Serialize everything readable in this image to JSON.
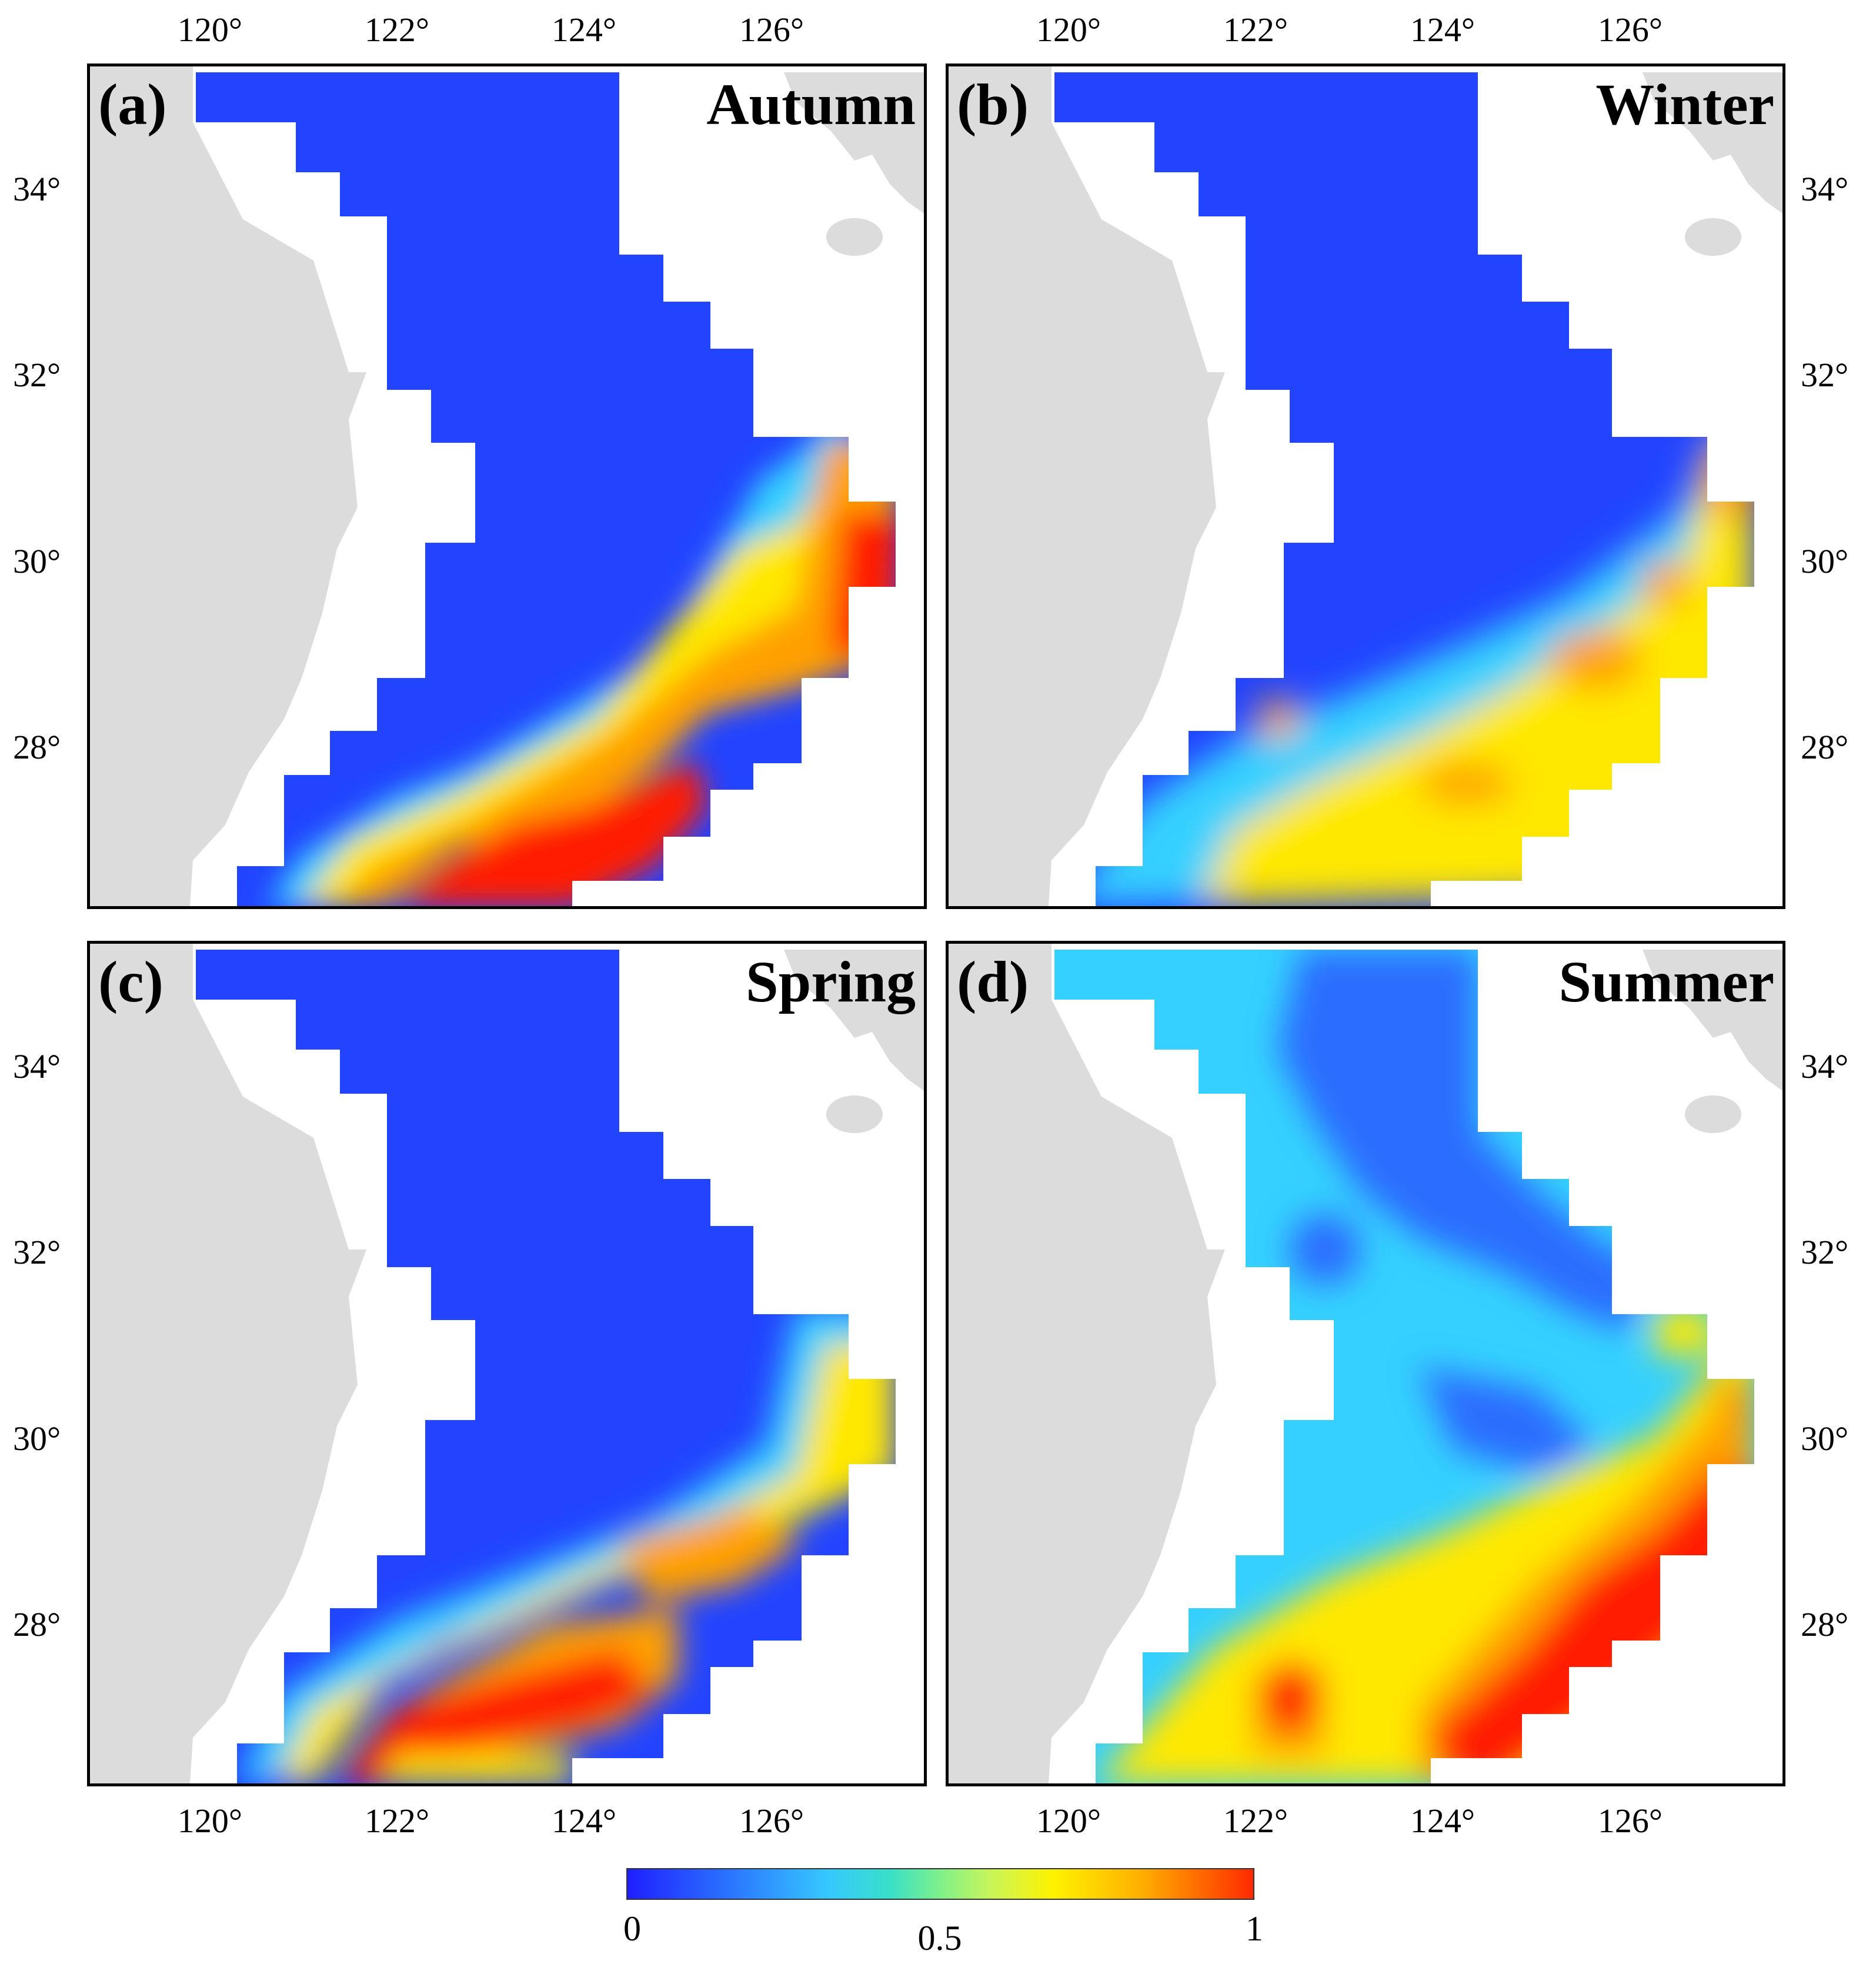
{
  "figure": {
    "panels": [
      {
        "label": "(a)",
        "season": "Autumn"
      },
      {
        "label": "(b)",
        "season": "Winter"
      },
      {
        "label": "(c)",
        "season": "Spring"
      },
      {
        "label": "(d)",
        "season": "Summer"
      }
    ],
    "lon_ticks": [
      "120°",
      "122°",
      "124°",
      "126°"
    ],
    "lat_ticks": [
      "34°",
      "32°",
      "30°",
      "28°"
    ],
    "colorbar": {
      "min_label": "0",
      "mid_label": "0.5",
      "max_label": "1",
      "colors": [
        "#1f1fff",
        "#35c8ff",
        "#fff200",
        "#ff2a00"
      ]
    },
    "colors": {
      "land": "#dcdcdc",
      "low": "#2244ff",
      "cyan": "#35d0ff",
      "yellow": "#ffe800",
      "orange": "#ffa000",
      "red": "#ff1a00"
    }
  }
}
